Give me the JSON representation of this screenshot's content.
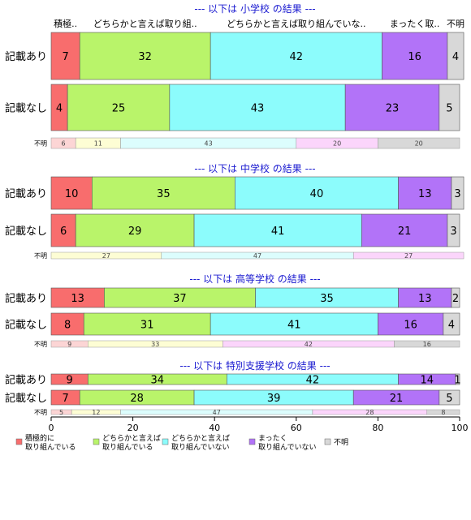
{
  "chart_data": {
    "type": "bar",
    "orientation": "horizontal",
    "stacked": true,
    "xlim": [
      0,
      100
    ],
    "x_ticks": [
      0,
      20,
      40,
      60,
      80,
      100
    ],
    "grid": false,
    "legend_position": "bottom-left",
    "column_headers": [
      "積極..",
      "どちらかと言えば取り組..",
      "どちらかと言えば取り組んでいな..",
      "まったく取..",
      "不明"
    ],
    "legend": {
      "labels": [
        "積極的に\n取り組んでいる",
        "どちらかと言えば\n取り組んでいる",
        "どちらかと言えば\n取り組んでいない",
        "まったく\n取り組んでいない",
        "不明"
      ],
      "colors": [
        "#f86d6d",
        "#b9f46a",
        "#8cfcfc",
        "#b273f8",
        "#d8d8d8"
      ],
      "unknown_row_colors": [
        "#fcd5d5",
        "#fdfdd4",
        "#dcfdfd",
        "#fbd5fb",
        "#d8d8d8"
      ]
    },
    "panels": [
      {
        "title": "--- 以下は 小学校 の結果 ---",
        "rows": [
          {
            "label": "記載あり",
            "values": [
              7,
              32,
              42,
              16,
              4
            ]
          },
          {
            "label": "記載なし",
            "values": [
              4,
              25,
              43,
              23,
              5
            ]
          }
        ],
        "unknown_row": {
          "label": "不明",
          "values": [
            6,
            11,
            43,
            20,
            20
          ]
        }
      },
      {
        "title": "--- 以下は 中学校 の結果 ---",
        "rows": [
          {
            "label": "記載あり",
            "values": [
              10,
              35,
              40,
              13,
              3
            ]
          },
          {
            "label": "記載なし",
            "values": [
              6,
              29,
              41,
              21,
              3
            ]
          }
        ],
        "unknown_row": {
          "label": "不明",
          "values": [
            0,
            27,
            47,
            27,
            0
          ]
        }
      },
      {
        "title": "--- 以下は 高等学校 の結果 ---",
        "rows": [
          {
            "label": "記載あり",
            "values": [
              13,
              37,
              35,
              13,
              2
            ]
          },
          {
            "label": "記載なし",
            "values": [
              8,
              31,
              41,
              16,
              4
            ]
          }
        ],
        "unknown_row": {
          "label": "不明",
          "values": [
            9,
            33,
            0,
            42,
            16
          ]
        }
      },
      {
        "title": "--- 以下は 特別支援学校 の結果 ---",
        "rows": [
          {
            "label": "記載あり",
            "values": [
              9,
              34,
              42,
              14,
              1
            ]
          },
          {
            "label": "記載なし",
            "values": [
              7,
              28,
              39,
              21,
              5
            ]
          }
        ],
        "unknown_row": {
          "label": "不明",
          "values": [
            5,
            12,
            47,
            28,
            8
          ]
        }
      }
    ]
  }
}
